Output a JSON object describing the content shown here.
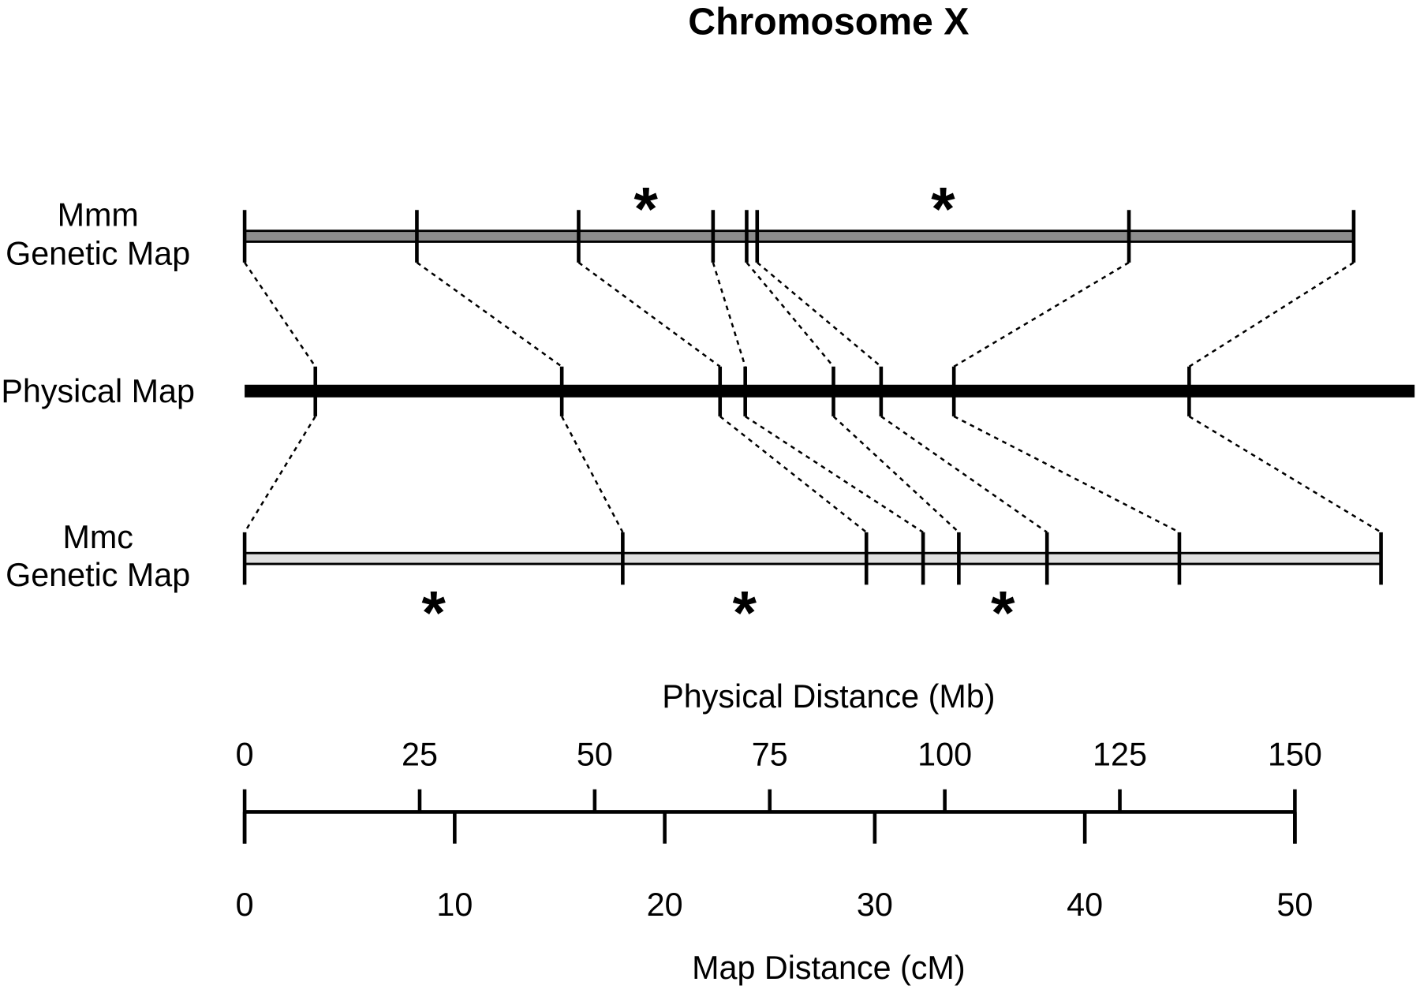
{
  "chart_data": {
    "type": "map-comparison",
    "title": "Chromosome X",
    "marker_symbol": "*",
    "tracks": [
      {
        "name_lines": [
          "Mmm",
          "Genetic Map"
        ],
        "scale": "cM",
        "color": "#8c8c8c",
        "positions": [
          0,
          8.2,
          15.9,
          22.3,
          23.9,
          24.4,
          42.1,
          52.8
        ],
        "asterisk_intervals": [
          2,
          5
        ]
      },
      {
        "name_lines": [
          "Physical Map"
        ],
        "scale": "Mb",
        "color": "#000000",
        "length": 167.1,
        "positions": [
          10.1,
          45.3,
          67.9,
          71.5,
          84.1,
          90.9,
          101.3,
          134.9
        ],
        "asterisk_intervals": []
      },
      {
        "name_lines": [
          "Mmc",
          "Genetic Map"
        ],
        "scale": "cM",
        "color": "#e0e0e0",
        "positions": [
          0,
          18.0,
          29.6,
          32.3,
          34.0,
          38.2,
          44.5,
          54.1
        ],
        "asterisk_intervals": [
          0,
          1,
          4
        ]
      }
    ],
    "physical_axis": {
      "label": "Physical Distance (Mb)",
      "xlim": [
        0,
        150
      ],
      "xticks": [
        0,
        25,
        50,
        75,
        100,
        125,
        150
      ]
    },
    "map_axis": {
      "label": "Map Distance (cM)",
      "xlim": [
        0,
        50
      ],
      "xticks": [
        0,
        10,
        20,
        30,
        40,
        50
      ]
    }
  }
}
